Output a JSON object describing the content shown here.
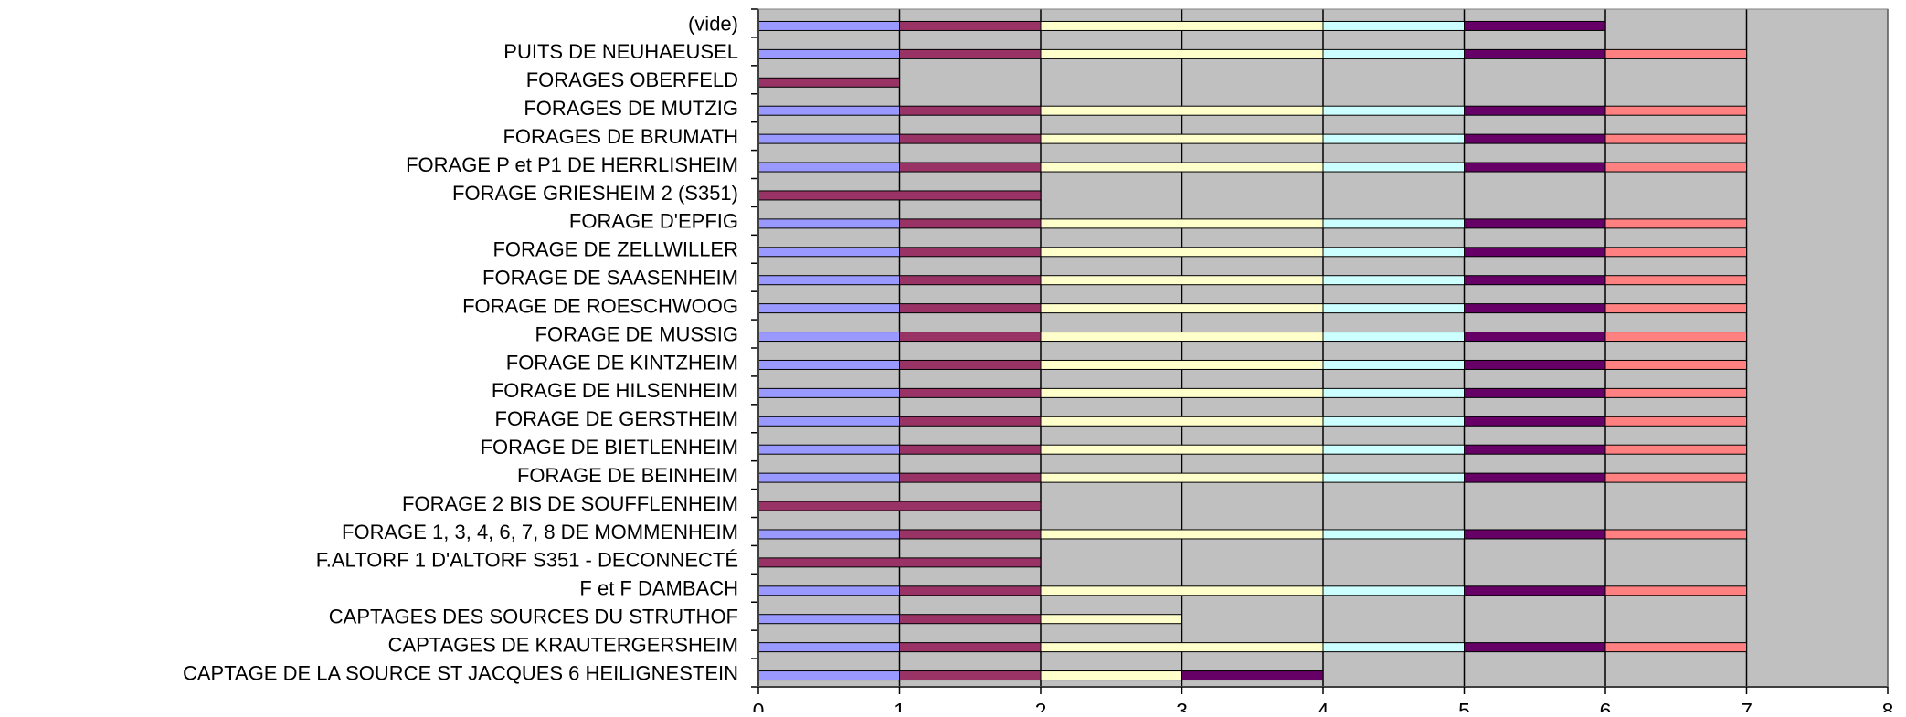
{
  "chart_data": {
    "type": "bar",
    "orientation": "horizontal",
    "stacked": true,
    "title": "",
    "xlabel": "",
    "ylabel": "",
    "xlim": [
      0,
      8
    ],
    "x_ticks": [
      0,
      1,
      2,
      3,
      4,
      5,
      6,
      7,
      8
    ],
    "grid": "vertical",
    "legend": "none",
    "plot_background": "#c0c0c0",
    "categories": [
      "(vide)",
      "PUITS DE NEUHAEUSEL",
      "FORAGES OBERFELD",
      "FORAGES DE MUTZIG",
      "FORAGES DE BRUMATH",
      "FORAGE P et P1 DE HERRLISHEIM",
      "FORAGE GRIESHEIM 2 (S351)",
      "FORAGE D'EPFIG",
      "FORAGE DE ZELLWILLER",
      "FORAGE DE SAASENHEIM",
      "FORAGE DE ROESCHWOOG",
      "FORAGE DE MUSSIG",
      "FORAGE DE KINTZHEIM",
      "FORAGE DE HILSENHEIM",
      "FORAGE DE GERSTHEIM",
      "FORAGE DE BIETLENHEIM",
      "FORAGE DE BEINHEIM",
      "FORAGE 2 BIS DE SOUFFLENHEIM",
      "FORAGE 1, 3, 4, 6, 7, 8 DE MOMMENHEIM",
      "F.ALTORF 1 D'ALTORF S351 - DECONNECTÉ",
      "F et F DAMBACH",
      "CAPTAGES DES SOURCES DU STRUTHOF",
      "CAPTAGES DE KRAUTERGERSHEIM",
      "CAPTAGE DE LA SOURCE ST JACQUES 6 HEILIGNESTEIN"
    ],
    "series": [
      {
        "color": "#9999ff",
        "values": [
          1,
          1,
          0,
          1,
          1,
          1,
          0,
          1,
          1,
          1,
          1,
          1,
          1,
          1,
          1,
          1,
          1,
          0,
          1,
          0,
          1,
          1,
          1,
          1
        ]
      },
      {
        "color": "#993366",
        "values": [
          1,
          1,
          1,
          1,
          1,
          1,
          2,
          1,
          1,
          1,
          1,
          1,
          1,
          1,
          1,
          1,
          1,
          2,
          1,
          2,
          1,
          1,
          1,
          1
        ]
      },
      {
        "color": "#ffffcc",
        "values": [
          2,
          2,
          0,
          2,
          2,
          2,
          0,
          2,
          2,
          2,
          2,
          2,
          2,
          2,
          2,
          2,
          2,
          0,
          2,
          0,
          2,
          1,
          2,
          1
        ]
      },
      {
        "color": "#ccffff",
        "values": [
          1,
          1,
          0,
          1,
          1,
          1,
          0,
          1,
          1,
          1,
          1,
          1,
          1,
          1,
          1,
          1,
          1,
          0,
          1,
          0,
          1,
          0,
          1,
          0
        ]
      },
      {
        "color": "#660066",
        "values": [
          1,
          1,
          0,
          1,
          1,
          1,
          0,
          1,
          1,
          1,
          1,
          1,
          1,
          1,
          1,
          1,
          1,
          0,
          1,
          0,
          1,
          0,
          1,
          1
        ]
      },
      {
        "color": "#ff8080",
        "values": [
          0,
          1,
          0,
          1,
          1,
          1,
          0,
          1,
          1,
          1,
          1,
          1,
          1,
          1,
          1,
          1,
          1,
          0,
          1,
          0,
          1,
          0,
          1,
          0
        ]
      }
    ]
  }
}
